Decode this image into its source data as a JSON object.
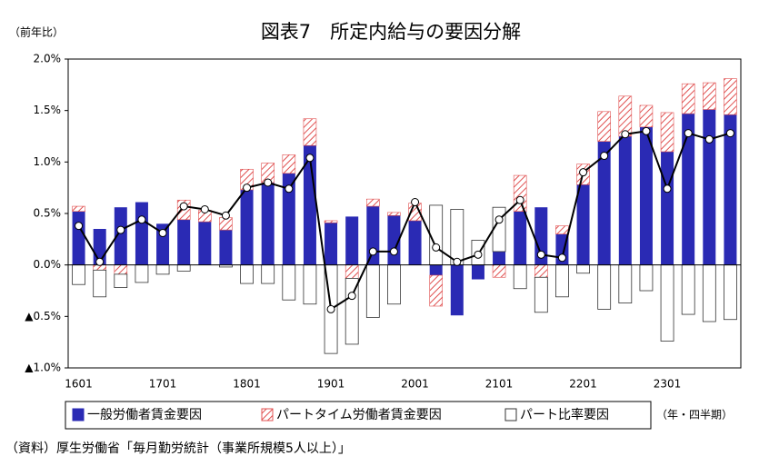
{
  "chart_data": {
    "type": "bar",
    "title": "図表7　所定内給与の要因分解",
    "y_unit": "（前年比）",
    "x_unit": "（年・四半期）",
    "source": "（資料）厚生労働省「毎月勤労統計（事業所規模5人以上）」",
    "categories": [
      "1601",
      null,
      null,
      null,
      "1701",
      null,
      null,
      null,
      "1801",
      null,
      null,
      null,
      "1901",
      null,
      null,
      null,
      "2001",
      null,
      null,
      null,
      "2101",
      null,
      null,
      null,
      "2201",
      null,
      null,
      null,
      "2301",
      null,
      null,
      null
    ],
    "series": [
      {
        "name": "一般労働者賃金要因",
        "color": "#2a2ab4",
        "values": [
          0.52,
          0.35,
          0.56,
          0.61,
          0.4,
          0.44,
          0.42,
          0.34,
          0.73,
          0.8,
          0.89,
          1.16,
          0.41,
          0.47,
          0.57,
          0.48,
          0.43,
          -0.1,
          -0.49,
          -0.14,
          0.13,
          0.52,
          0.56,
          0.3,
          0.78,
          1.2,
          1.25,
          1.34,
          1.1,
          1.47,
          1.51,
          1.46
        ]
      },
      {
        "name": "パートタイム労働者賃金要因",
        "color": "#e05050",
        "values": [
          0.05,
          -0.05,
          -0.09,
          0,
          0,
          0.19,
          0.11,
          0.12,
          0.2,
          0.19,
          0.18,
          0.26,
          0.02,
          -0.13,
          0.07,
          0.03,
          0.17,
          -0.3,
          0,
          0,
          -0.12,
          0.35,
          -0.12,
          0.08,
          0.2,
          0.29,
          0.39,
          0.21,
          0.38,
          0.29,
          0.26,
          0.35
        ]
      },
      {
        "name": "パート比率要因",
        "color": "#ffffff",
        "values": [
          -0.19,
          -0.26,
          -0.13,
          -0.17,
          -0.09,
          -0.06,
          0,
          -0.02,
          -0.18,
          -0.18,
          -0.34,
          -0.38,
          -0.86,
          -0.64,
          -0.51,
          -0.38,
          0,
          0.58,
          0.54,
          0.24,
          0.43,
          -0.23,
          -0.34,
          -0.31,
          -0.08,
          -0.43,
          -0.37,
          -0.25,
          -0.74,
          -0.48,
          -0.55,
          -0.53
        ]
      }
    ],
    "line": {
      "color": "#000000",
      "values": [
        0.38,
        0.03,
        0.34,
        0.44,
        0.31,
        0.57,
        0.54,
        0.48,
        0.75,
        0.8,
        0.74,
        1.04,
        -0.43,
        -0.3,
        0.13,
        0.13,
        0.61,
        0.17,
        0.03,
        0.1,
        0.44,
        0.63,
        0.1,
        0.07,
        0.9,
        1.06,
        1.27,
        1.3,
        0.74,
        1.28,
        1.22,
        1.28
      ]
    },
    "ylim": [
      -1.0,
      2.0
    ],
    "yticks": [
      {
        "value": -1.0,
        "label": "▲1.0%"
      },
      {
        "value": -0.5,
        "label": "▲0.5%"
      },
      {
        "value": 0,
        "label": "0.0%"
      },
      {
        "value": 0.5,
        "label": "0.5%"
      },
      {
        "value": 1.0,
        "label": "1.0%"
      },
      {
        "value": 1.5,
        "label": "1.5%"
      },
      {
        "value": 2.0,
        "label": "2.0%"
      }
    ],
    "grid": false
  }
}
